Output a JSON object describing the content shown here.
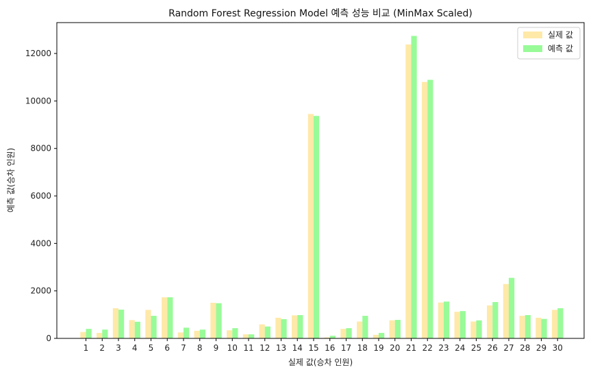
{
  "chart_data": {
    "type": "bar",
    "title": "Random Forest Regression Model 예측 성능 비교 (MinMax Scaled)",
    "xlabel": "실제 값(승차 인원)",
    "ylabel": "예측 값(승차 인원)",
    "ylim": [
      0,
      13300
    ],
    "yticks": [
      0,
      2000,
      4000,
      6000,
      8000,
      10000,
      12000
    ],
    "legend_position": "top-right",
    "grid": false,
    "categories": [
      "1",
      "2",
      "3",
      "4",
      "5",
      "6",
      "7",
      "8",
      "9",
      "10",
      "11",
      "12",
      "13",
      "14",
      "15",
      "16",
      "17",
      "18",
      "19",
      "20",
      "21",
      "22",
      "23",
      "24",
      "25",
      "26",
      "27",
      "28",
      "29",
      "30"
    ],
    "series": [
      {
        "name": "실제 값",
        "color": "#ffe9a8",
        "values": [
          270,
          230,
          1270,
          770,
          1200,
          1730,
          250,
          320,
          1500,
          340,
          170,
          590,
          870,
          970,
          9450,
          40,
          400,
          710,
          150,
          760,
          12380,
          10800,
          1510,
          1120,
          710,
          1390,
          2290,
          950,
          870,
          1200
        ]
      },
      {
        "name": "예측 값",
        "color": "#98fb98",
        "values": [
          400,
          370,
          1210,
          700,
          950,
          1730,
          450,
          370,
          1480,
          430,
          170,
          500,
          810,
          980,
          9370,
          110,
          430,
          950,
          230,
          780,
          12740,
          10890,
          1550,
          1150,
          760,
          1530,
          2550,
          980,
          820,
          1270
        ]
      }
    ]
  }
}
